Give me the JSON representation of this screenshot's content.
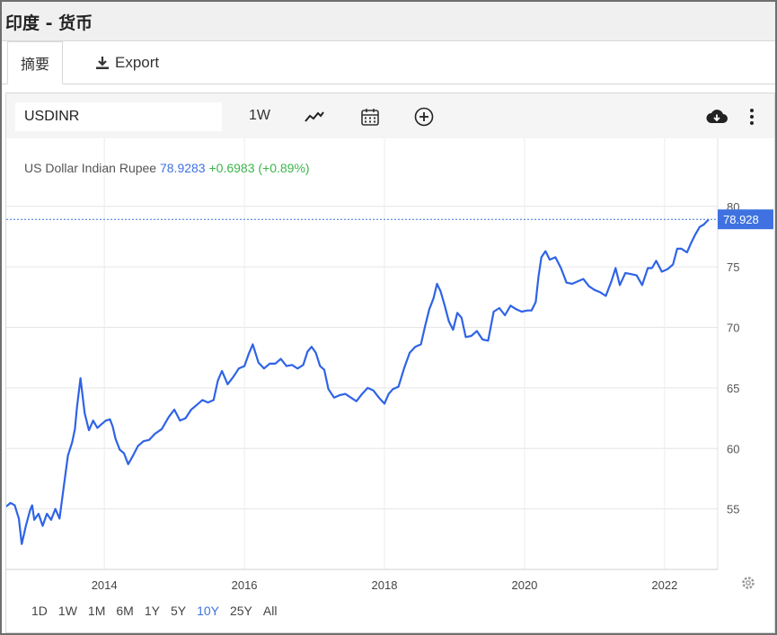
{
  "window": {
    "title": "印度 - 货币"
  },
  "tabs": [
    {
      "label": "摘要"
    }
  ],
  "export": {
    "label": "Export",
    "icon": "download-icon"
  },
  "toolbar": {
    "symbol": "USDINR",
    "interval": "1W",
    "icons": [
      "line-chart-icon",
      "calendar-icon",
      "add-circle-icon",
      "cloud-download-icon",
      "more-vertical-icon"
    ]
  },
  "legend": {
    "name": "US Dollar Indian Rupee",
    "price": "78.9283",
    "change": "+0.6983 (+0.89%)"
  },
  "price_tag": "78.928",
  "ranges": [
    {
      "label": "1D"
    },
    {
      "label": "1W"
    },
    {
      "label": "1M"
    },
    {
      "label": "6M"
    },
    {
      "label": "1Y"
    },
    {
      "label": "5Y"
    },
    {
      "label": "10Y",
      "active": true
    },
    {
      "label": "25Y"
    },
    {
      "label": "All"
    }
  ],
  "colors": {
    "line": "#2f63e6",
    "accent": "#3f72e0",
    "positive": "#3ab54a"
  },
  "chart_data": {
    "type": "line",
    "x_ticks": [
      "2014",
      "2016",
      "2018",
      "2020",
      "2022"
    ],
    "y_ticks": [
      "55",
      "60",
      "65",
      "70",
      "75",
      "80"
    ],
    "ylim": [
      50.0,
      80.8
    ],
    "xlim": [
      2012.6,
      2022.63
    ],
    "grid": true,
    "series": [
      {
        "values": [
          [
            2012.6,
            55.2
          ],
          [
            2012.66,
            55.5
          ],
          [
            2012.72,
            55.3
          ],
          [
            2012.78,
            54.2
          ],
          [
            2012.82,
            52.1
          ],
          [
            2012.88,
            53.6
          ],
          [
            2012.94,
            54.9
          ],
          [
            2012.97,
            55.3
          ],
          [
            2013.0,
            54.1
          ],
          [
            2013.06,
            54.6
          ],
          [
            2013.12,
            53.6
          ],
          [
            2013.18,
            54.6
          ],
          [
            2013.24,
            54.1
          ],
          [
            2013.3,
            55.0
          ],
          [
            2013.36,
            54.2
          ],
          [
            2013.42,
            56.8
          ],
          [
            2013.48,
            59.4
          ],
          [
            2013.54,
            60.5
          ],
          [
            2013.58,
            61.6
          ],
          [
            2013.61,
            63.4
          ],
          [
            2013.66,
            65.8
          ],
          [
            2013.72,
            62.9
          ],
          [
            2013.78,
            61.5
          ],
          [
            2013.84,
            62.3
          ],
          [
            2013.9,
            61.7
          ],
          [
            2013.96,
            62.0
          ],
          [
            2014.02,
            62.3
          ],
          [
            2014.08,
            62.4
          ],
          [
            2014.12,
            61.8
          ],
          [
            2014.16,
            60.8
          ],
          [
            2014.22,
            59.9
          ],
          [
            2014.28,
            59.6
          ],
          [
            2014.34,
            58.7
          ],
          [
            2014.4,
            59.3
          ],
          [
            2014.48,
            60.2
          ],
          [
            2014.56,
            60.6
          ],
          [
            2014.64,
            60.7
          ],
          [
            2014.72,
            61.2
          ],
          [
            2014.82,
            61.6
          ],
          [
            2014.92,
            62.6
          ],
          [
            2015.0,
            63.2
          ],
          [
            2015.08,
            62.3
          ],
          [
            2015.16,
            62.5
          ],
          [
            2015.24,
            63.2
          ],
          [
            2015.32,
            63.6
          ],
          [
            2015.4,
            64.0
          ],
          [
            2015.48,
            63.8
          ],
          [
            2015.56,
            64.0
          ],
          [
            2015.62,
            65.6
          ],
          [
            2015.68,
            66.4
          ],
          [
            2015.76,
            65.3
          ],
          [
            2015.84,
            65.9
          ],
          [
            2015.92,
            66.6
          ],
          [
            2016.0,
            66.8
          ],
          [
            2016.06,
            67.8
          ],
          [
            2016.12,
            68.6
          ],
          [
            2016.2,
            67.1
          ],
          [
            2016.28,
            66.6
          ],
          [
            2016.36,
            67.0
          ],
          [
            2016.44,
            67.0
          ],
          [
            2016.52,
            67.4
          ],
          [
            2016.6,
            66.8
          ],
          [
            2016.68,
            66.9
          ],
          [
            2016.76,
            66.6
          ],
          [
            2016.84,
            66.9
          ],
          [
            2016.9,
            68.0
          ],
          [
            2016.96,
            68.4
          ],
          [
            2017.02,
            67.9
          ],
          [
            2017.08,
            66.8
          ],
          [
            2017.14,
            66.5
          ],
          [
            2017.2,
            64.9
          ],
          [
            2017.28,
            64.2
          ],
          [
            2017.36,
            64.4
          ],
          [
            2017.44,
            64.5
          ],
          [
            2017.52,
            64.2
          ],
          [
            2017.6,
            63.9
          ],
          [
            2017.68,
            64.5
          ],
          [
            2017.76,
            65.0
          ],
          [
            2017.84,
            64.8
          ],
          [
            2017.92,
            64.2
          ],
          [
            2018.0,
            63.7
          ],
          [
            2018.06,
            64.5
          ],
          [
            2018.12,
            64.9
          ],
          [
            2018.2,
            65.1
          ],
          [
            2018.28,
            66.6
          ],
          [
            2018.36,
            67.9
          ],
          [
            2018.44,
            68.4
          ],
          [
            2018.52,
            68.6
          ],
          [
            2018.58,
            70.1
          ],
          [
            2018.64,
            71.5
          ],
          [
            2018.7,
            72.4
          ],
          [
            2018.75,
            73.6
          ],
          [
            2018.8,
            73.0
          ],
          [
            2018.86,
            71.8
          ],
          [
            2018.92,
            70.5
          ],
          [
            2018.98,
            69.8
          ],
          [
            2019.04,
            71.2
          ],
          [
            2019.1,
            70.8
          ],
          [
            2019.16,
            69.2
          ],
          [
            2019.24,
            69.3
          ],
          [
            2019.32,
            69.7
          ],
          [
            2019.4,
            69.0
          ],
          [
            2019.48,
            68.9
          ],
          [
            2019.56,
            71.3
          ],
          [
            2019.64,
            71.6
          ],
          [
            2019.72,
            71.0
          ],
          [
            2019.8,
            71.8
          ],
          [
            2019.88,
            71.5
          ],
          [
            2019.96,
            71.3
          ],
          [
            2020.04,
            71.4
          ],
          [
            2020.1,
            71.4
          ],
          [
            2020.16,
            72.1
          ],
          [
            2020.2,
            74.2
          ],
          [
            2020.24,
            75.8
          ],
          [
            2020.3,
            76.3
          ],
          [
            2020.36,
            75.6
          ],
          [
            2020.44,
            75.8
          ],
          [
            2020.52,
            74.9
          ],
          [
            2020.6,
            73.7
          ],
          [
            2020.68,
            73.6
          ],
          [
            2020.76,
            73.8
          ],
          [
            2020.84,
            74.0
          ],
          [
            2020.92,
            73.4
          ],
          [
            2021.0,
            73.1
          ],
          [
            2021.08,
            72.9
          ],
          [
            2021.16,
            72.6
          ],
          [
            2021.24,
            73.8
          ],
          [
            2021.3,
            74.9
          ],
          [
            2021.36,
            73.5
          ],
          [
            2021.44,
            74.5
          ],
          [
            2021.52,
            74.4
          ],
          [
            2021.6,
            74.3
          ],
          [
            2021.68,
            73.5
          ],
          [
            2021.76,
            74.9
          ],
          [
            2021.82,
            74.9
          ],
          [
            2021.88,
            75.5
          ],
          [
            2021.96,
            74.6
          ],
          [
            2022.04,
            74.8
          ],
          [
            2022.12,
            75.2
          ],
          [
            2022.18,
            76.5
          ],
          [
            2022.24,
            76.5
          ],
          [
            2022.32,
            76.2
          ],
          [
            2022.38,
            77.0
          ],
          [
            2022.44,
            77.7
          ],
          [
            2022.5,
            78.3
          ],
          [
            2022.56,
            78.5
          ],
          [
            2022.63,
            78.93
          ]
        ]
      }
    ]
  }
}
